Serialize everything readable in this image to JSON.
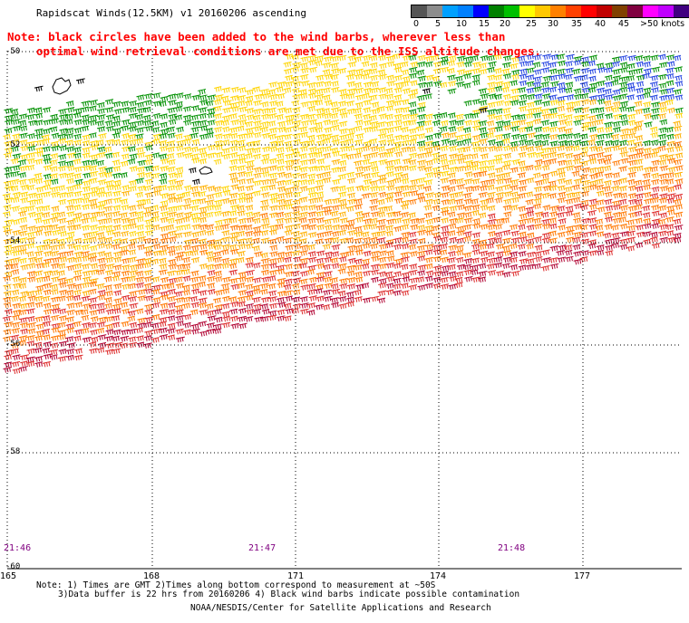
{
  "header": {
    "title": "Rapidscat Winds(12.5KM) v1 20160206 ascending"
  },
  "notice": {
    "line1": "Note: black circles have been added to the wind barbs, wherever less than",
    "line2": "optimal wind retrieval conditions are met due to the ISS altitude changes."
  },
  "colorbar": {
    "colors": [
      "#555555",
      "#8c8c8c",
      "#00a0ff",
      "#0080ff",
      "#0000ff",
      "#008000",
      "#00c000",
      "#ffff00",
      "#ffc800",
      "#ff8000",
      "#ff4000",
      "#ff0000",
      "#c00000",
      "#804000",
      "#800040",
      "#ff00ff",
      "#c000ff",
      "#400080"
    ],
    "labels": [
      "0",
      "5",
      "10",
      "15",
      "20",
      "25",
      "30",
      "35",
      "40",
      "45",
      ">50 knots"
    ]
  },
  "axes": {
    "lon_labels": [
      "165",
      "168",
      "171",
      "174",
      "177"
    ],
    "lat_labels": [
      "-50",
      "-52",
      "-54",
      "-56",
      "-58",
      "-60"
    ],
    "time_labels": [
      "21:46",
      "21:47",
      "21:48"
    ]
  },
  "footer": {
    "note1": "Note: 1) Times are GMT 2)Times along bottom correspond to measurement at ~50S",
    "note2": "3)Data buffer is 22 hrs from 20160206 4) Black wind barbs indicate possible contamination",
    "credit": "NOAA/NESDIS/Center for Satellite Applications and Research"
  },
  "map": {
    "wind_colors": {
      "light": "#009000",
      "moderate": "#ffd400",
      "fresh": "#ffb000",
      "strong": "#ff7800",
      "gale": "#dd2a2a",
      "storm": "#b00030",
      "high_speed": "#2040e0",
      "flagged": "#000000"
    }
  }
}
